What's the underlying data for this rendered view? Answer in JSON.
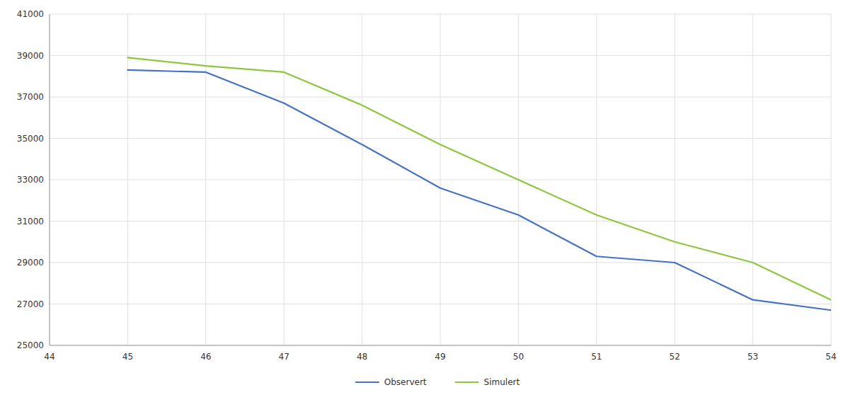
{
  "chart_data": {
    "type": "line",
    "x": [
      44,
      45,
      46,
      47,
      48,
      49,
      50,
      51,
      52,
      53,
      54
    ],
    "series": [
      {
        "name": "Observert",
        "color": "#4472C4",
        "values": [
          null,
          38300,
          38200,
          36700,
          34700,
          32600,
          31300,
          29300,
          29000,
          27200,
          26700
        ]
      },
      {
        "name": "Simulert",
        "color": "#8DC63F",
        "values": [
          null,
          38900,
          38500,
          38200,
          36600,
          34700,
          33000,
          31300,
          30000,
          29000,
          27200
        ]
      }
    ],
    "xlim": [
      44,
      54
    ],
    "ylim": [
      25000,
      41000
    ],
    "xticks": [
      44,
      45,
      46,
      47,
      48,
      49,
      50,
      51,
      52,
      53,
      54
    ],
    "yticks": [
      25000,
      27000,
      29000,
      31000,
      33000,
      35000,
      37000,
      39000,
      41000
    ],
    "grid": true,
    "legend": "bottom"
  }
}
